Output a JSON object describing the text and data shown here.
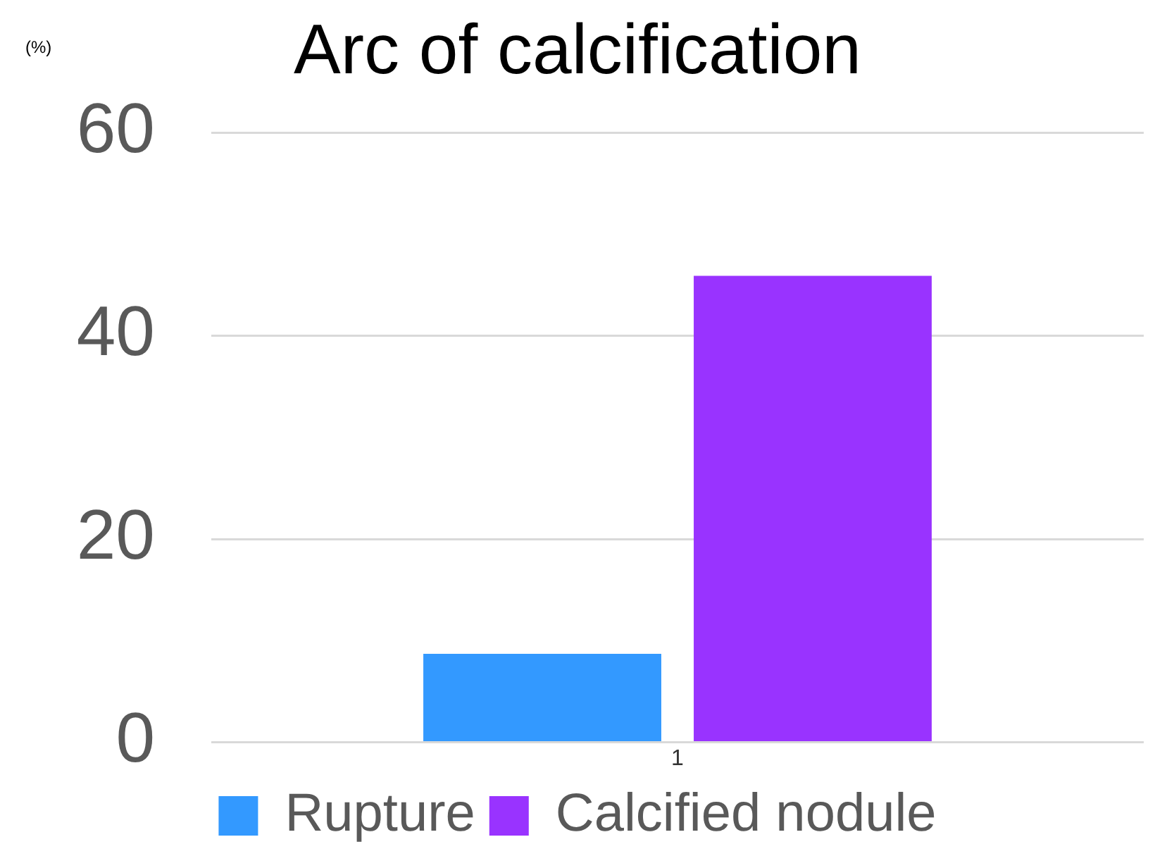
{
  "chart_data": {
    "type": "bar",
    "title": "Arc of calcification",
    "ylabel": "(%)",
    "categories": [
      "1"
    ],
    "series": [
      {
        "name": "Rupture",
        "color": "#3399ff",
        "values": [
          8.7
        ]
      },
      {
        "name": "Calcified nodule",
        "color": "#9933ff",
        "values": [
          45.9
        ]
      }
    ],
    "ylim": [
      0,
      60
    ],
    "yticks": [
      0,
      20,
      40,
      60
    ],
    "grid": "y",
    "legend": "bottom"
  }
}
